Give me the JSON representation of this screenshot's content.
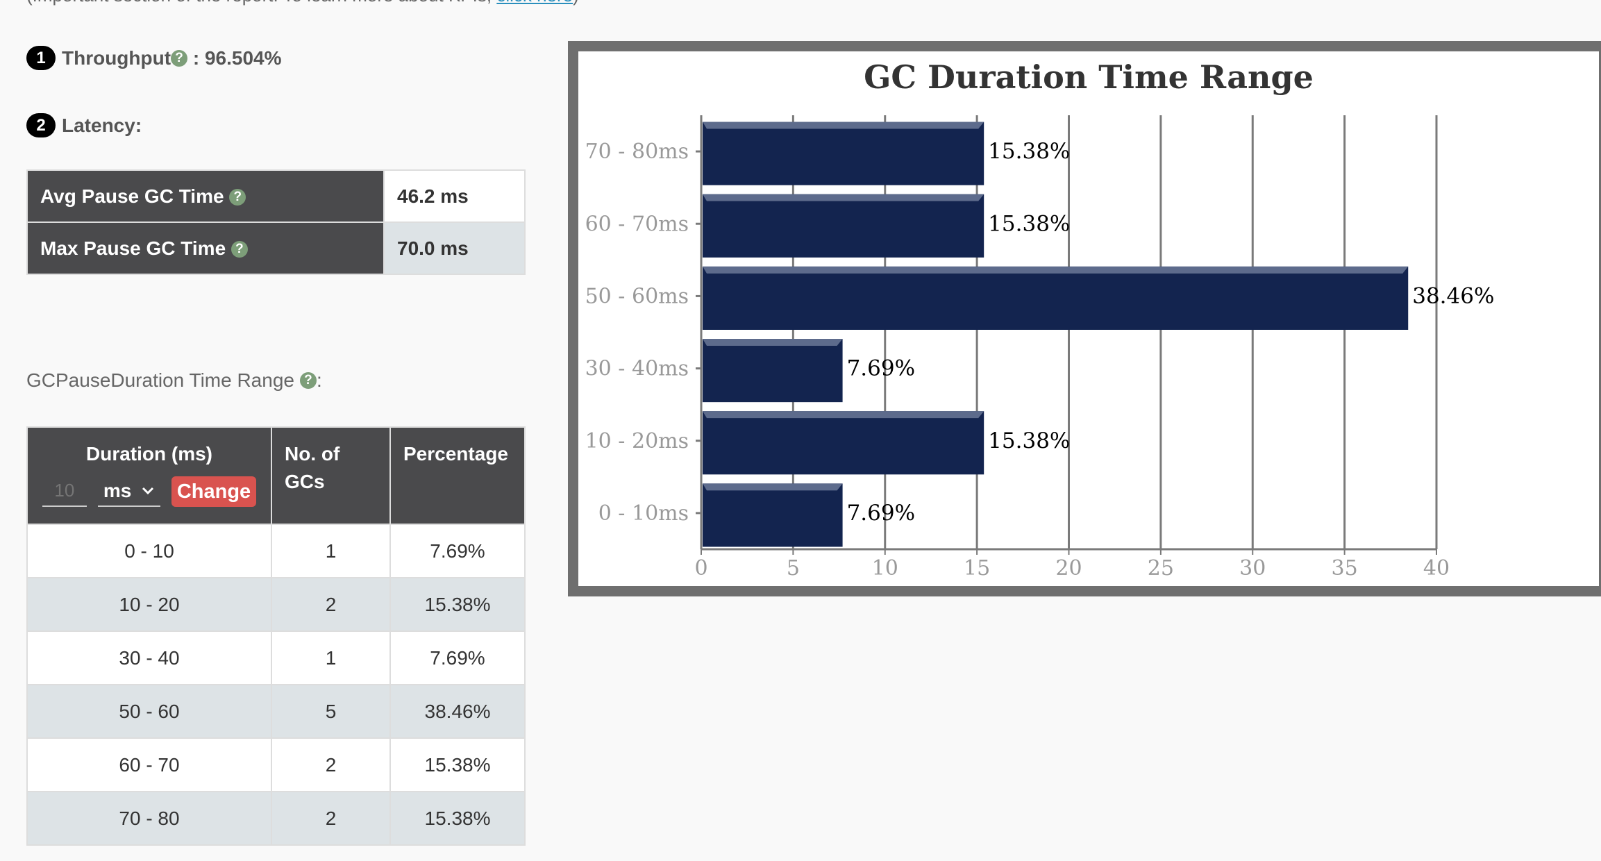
{
  "intro": {
    "text": "(Important section of the report. To learn more about KPIs, ",
    "link": "click here",
    "close": ")"
  },
  "kpi": {
    "throughput": {
      "num": "1",
      "label": "Throughput",
      "value": " : 96.504%"
    },
    "latency": {
      "num": "2",
      "label": "Latency:"
    }
  },
  "latency_table": [
    {
      "label": "Avg Pause GC Time",
      "value": "46.2 ms"
    },
    {
      "label": "Max Pause GC Time",
      "value": "70.0 ms"
    }
  ],
  "pause_range": {
    "title": "GCPauseDuration Time Range",
    "suffix": ":",
    "headers": {
      "duration": "Duration (ms)",
      "count": "No. of GCs",
      "percentage": "Percentage"
    },
    "size_placeholder": "10",
    "unit": "ms",
    "change_label": "Change",
    "rows": [
      {
        "range": "0 - 10",
        "count": "1",
        "pct": "7.69%"
      },
      {
        "range": "10 - 20",
        "count": "2",
        "pct": "15.38%"
      },
      {
        "range": "30 - 40",
        "count": "1",
        "pct": "7.69%"
      },
      {
        "range": "50 - 60",
        "count": "5",
        "pct": "38.46%"
      },
      {
        "range": "60 - 70",
        "count": "2",
        "pct": "15.38%"
      },
      {
        "range": "70 - 80",
        "count": "2",
        "pct": "15.38%"
      }
    ]
  },
  "colors": {
    "bar": "#13244f",
    "header": "#4a4a4c",
    "change": "#d9534f",
    "help": "#7d9e79"
  },
  "chart_data": {
    "type": "bar",
    "orientation": "horizontal",
    "title": "GC Duration Time Range",
    "categories": [
      "70 - 80ms",
      "60 - 70ms",
      "50 - 60ms",
      "30 - 40ms",
      "10 - 20ms",
      "0 - 10ms"
    ],
    "values": [
      15.38,
      15.38,
      38.46,
      7.69,
      15.38,
      7.69
    ],
    "labels": [
      "15.38%",
      "15.38%",
      "38.46%",
      "7.69%",
      "15.38%",
      "7.69%"
    ],
    "xlim": [
      0,
      40
    ],
    "xticks": [
      "0",
      "5",
      "10",
      "15",
      "20",
      "25",
      "30",
      "35",
      "40"
    ],
    "grid": true
  }
}
